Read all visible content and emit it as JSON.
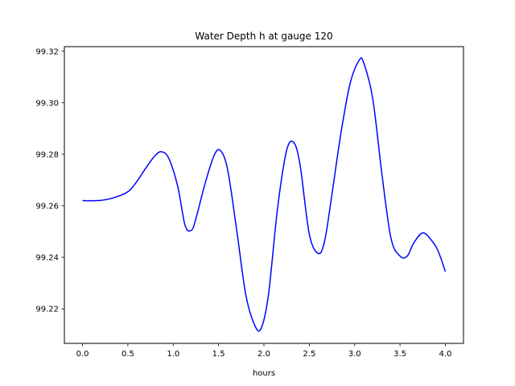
{
  "chart_data": {
    "type": "line",
    "title": "Water Depth h at gauge 120",
    "xlabel": "hours",
    "ylabel": "",
    "xlim": [
      -0.2,
      4.2
    ],
    "ylim": [
      99.2066,
      99.3218
    ],
    "xticks": [
      0.0,
      0.5,
      1.0,
      1.5,
      2.0,
      2.5,
      3.0,
      3.5,
      4.0
    ],
    "xtick_labels": [
      "0.0",
      "0.5",
      "1.0",
      "1.5",
      "2.0",
      "2.5",
      "3.0",
      "3.5",
      "4.0"
    ],
    "yticks": [
      99.22,
      99.24,
      99.26,
      99.28,
      99.3,
      99.32
    ],
    "ytick_labels": [
      "99.22",
      "99.24",
      "99.26",
      "99.28",
      "99.30",
      "99.32"
    ],
    "grid": false,
    "series": [
      {
        "color": "#0000ff",
        "x": [
          0.0,
          0.2,
          0.35,
          0.5,
          0.6,
          0.7,
          0.8,
          0.87,
          0.95,
          1.05,
          1.13,
          1.2,
          1.25,
          1.35,
          1.45,
          1.52,
          1.6,
          1.7,
          1.8,
          1.9,
          1.97,
          2.05,
          2.15,
          2.25,
          2.33,
          2.4,
          2.5,
          2.6,
          2.67,
          2.75,
          2.85,
          2.95,
          3.05,
          3.1,
          3.2,
          3.3,
          3.4,
          3.5,
          3.58,
          3.65,
          3.75,
          3.85,
          3.92,
          4.0
        ],
        "y": [
          99.262,
          99.2621,
          99.2632,
          99.2655,
          99.2695,
          99.2748,
          99.2795,
          99.281,
          99.2785,
          99.2675,
          99.2525,
          99.2505,
          99.255,
          99.2685,
          99.2795,
          99.2815,
          99.274,
          99.2505,
          99.2255,
          99.2135,
          99.2125,
          99.2255,
          99.259,
          99.2815,
          99.2845,
          99.2755,
          99.249,
          99.2415,
          99.2465,
          99.2645,
          99.2885,
          99.3075,
          99.3165,
          99.3155,
          99.3015,
          99.2725,
          99.2475,
          99.2405,
          99.2405,
          99.2455,
          99.2495,
          99.2465,
          99.2425,
          99.2345
        ]
      }
    ]
  }
}
